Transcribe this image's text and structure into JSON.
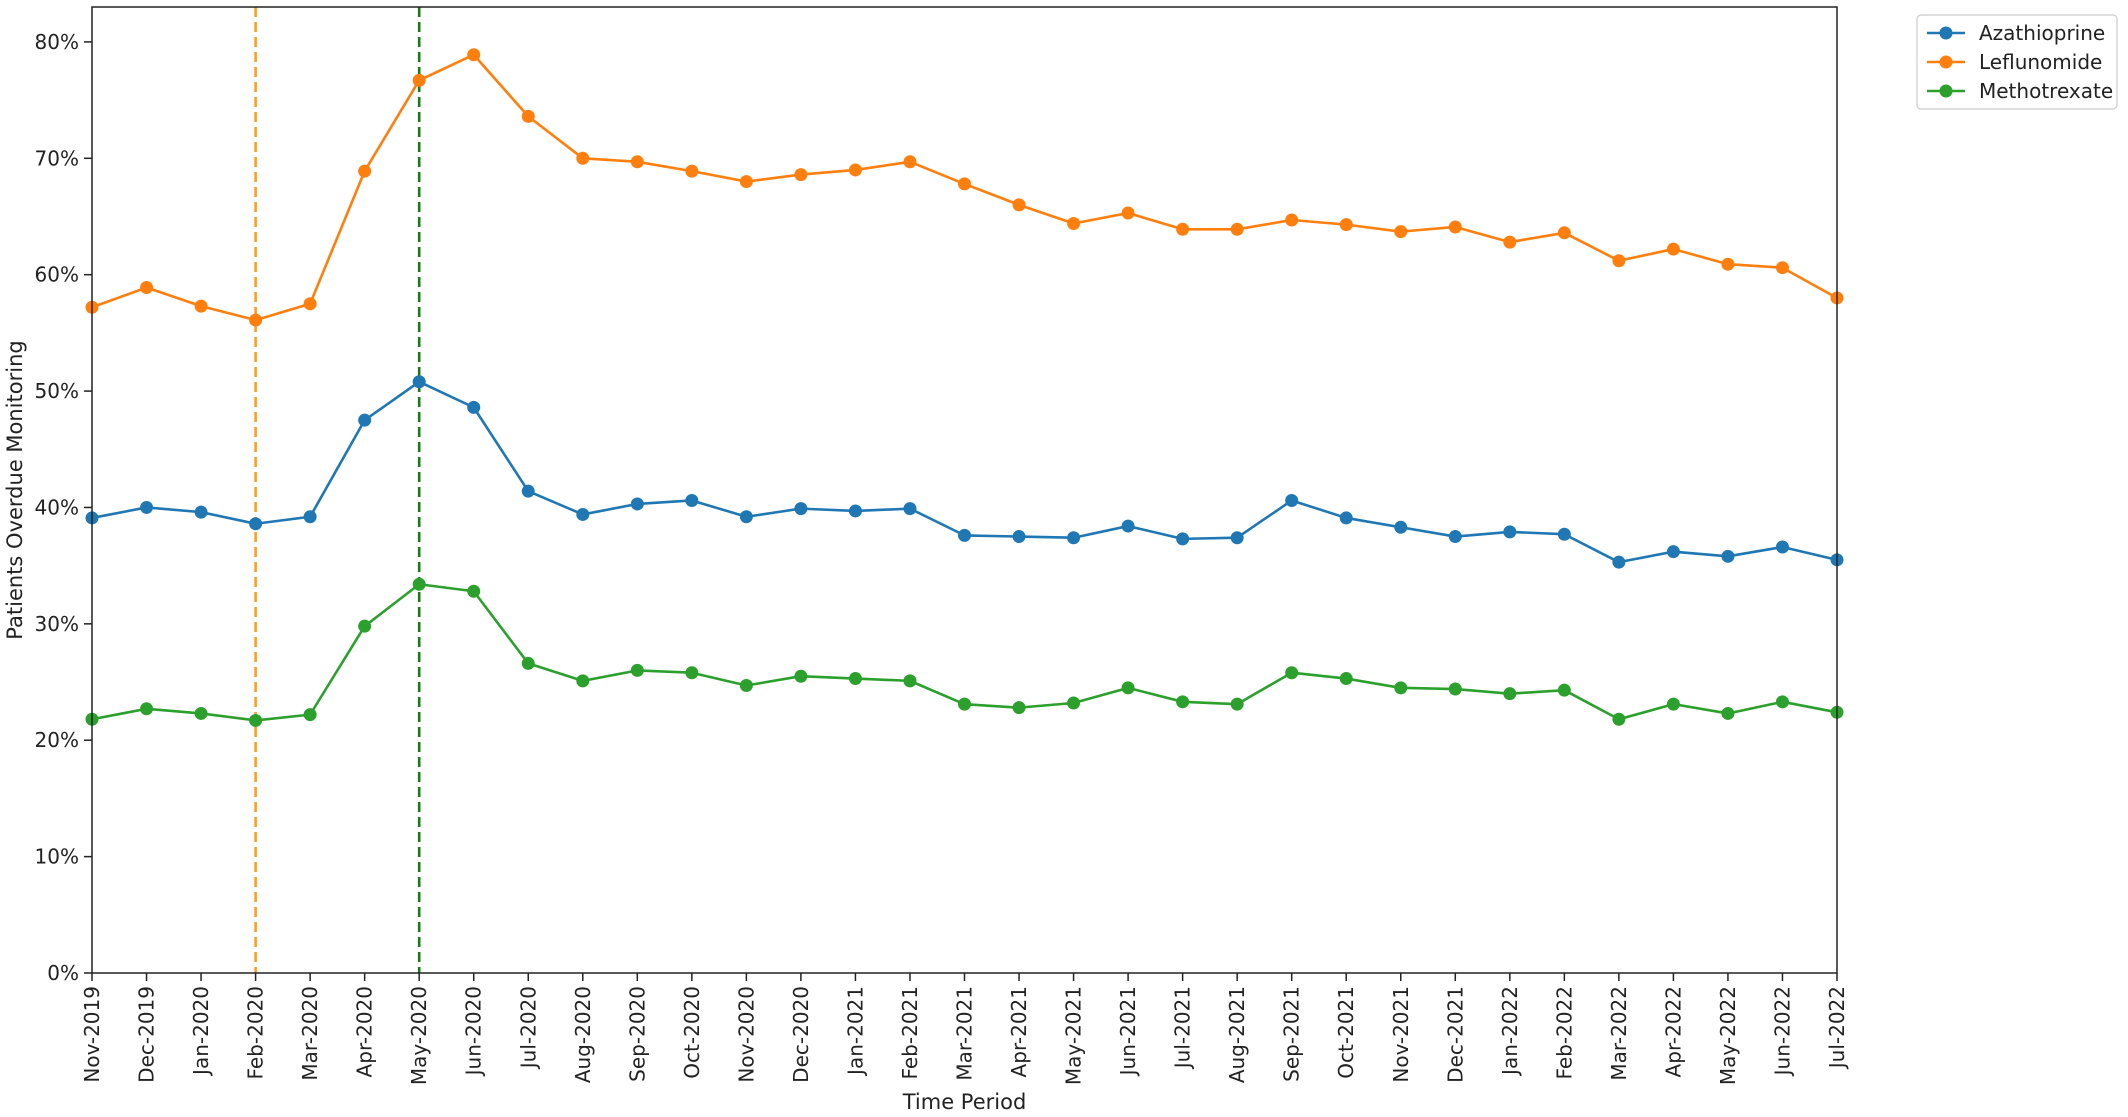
{
  "chart_data": {
    "type": "line",
    "title": "",
    "xlabel": "Time Period",
    "ylabel": "Patients Overdue Monitoring",
    "ylim": [
      0,
      0.83
    ],
    "yticks": [
      0,
      0.1,
      0.2,
      0.3,
      0.4,
      0.5,
      0.6,
      0.7,
      0.8
    ],
    "ytick_labels": [
      "0%",
      "10%",
      "20%",
      "30%",
      "40%",
      "50%",
      "60%",
      "70%",
      "80%"
    ],
    "grid": false,
    "legend_position": "outside top-right",
    "categories": [
      "Nov-2019",
      "Dec-2019",
      "Jan-2020",
      "Feb-2020",
      "Mar-2020",
      "Apr-2020",
      "May-2020",
      "Jun-2020",
      "Jul-2020",
      "Aug-2020",
      "Sep-2020",
      "Oct-2020",
      "Nov-2020",
      "Dec-2020",
      "Jan-2021",
      "Feb-2021",
      "Mar-2021",
      "Apr-2021",
      "May-2021",
      "Jun-2021",
      "Jul-2021",
      "Aug-2021",
      "Sep-2021",
      "Oct-2021",
      "Nov-2021",
      "Dec-2021",
      "Jan-2022",
      "Feb-2022",
      "Mar-2022",
      "Apr-2022",
      "May-2022",
      "Jun-2022",
      "Jul-2022"
    ],
    "series": [
      {
        "name": "Azathioprine",
        "color": "#1f77b4",
        "values": [
          0.391,
          0.4,
          0.396,
          0.386,
          0.392,
          0.475,
          0.508,
          0.486,
          0.414,
          0.394,
          0.403,
          0.406,
          0.392,
          0.399,
          0.397,
          0.399,
          0.376,
          0.375,
          0.374,
          0.384,
          0.373,
          0.374,
          0.406,
          0.391,
          0.383,
          0.375,
          0.379,
          0.377,
          0.353,
          0.362,
          0.358,
          0.366,
          0.355
        ]
      },
      {
        "name": "Leflunomide",
        "color": "#ff7f0e",
        "values": [
          0.572,
          0.589,
          0.573,
          0.561,
          0.575,
          0.689,
          0.767,
          0.789,
          0.736,
          0.7,
          0.697,
          0.689,
          0.68,
          0.686,
          0.69,
          0.697,
          0.678,
          0.66,
          0.644,
          0.653,
          0.639,
          0.639,
          0.647,
          0.643,
          0.637,
          0.641,
          0.628,
          0.636,
          0.612,
          0.622,
          0.609,
          0.606,
          0.58
        ]
      },
      {
        "name": "Methotrexate",
        "color": "#2ca02c",
        "values": [
          0.218,
          0.227,
          0.223,
          0.217,
          0.222,
          0.298,
          0.334,
          0.328,
          0.266,
          0.251,
          0.26,
          0.258,
          0.247,
          0.255,
          0.253,
          0.251,
          0.231,
          0.228,
          0.232,
          0.245,
          0.233,
          0.231,
          0.258,
          0.253,
          0.245,
          0.244,
          0.24,
          0.243,
          0.218,
          0.231,
          0.223,
          0.233,
          0.224
        ]
      }
    ],
    "vlines": [
      {
        "x": "Feb-2020",
        "color": "#ff9f1c",
        "style": "dashed"
      },
      {
        "x": "May-2020",
        "color": "#1a7a1a",
        "style": "dashed"
      }
    ]
  }
}
